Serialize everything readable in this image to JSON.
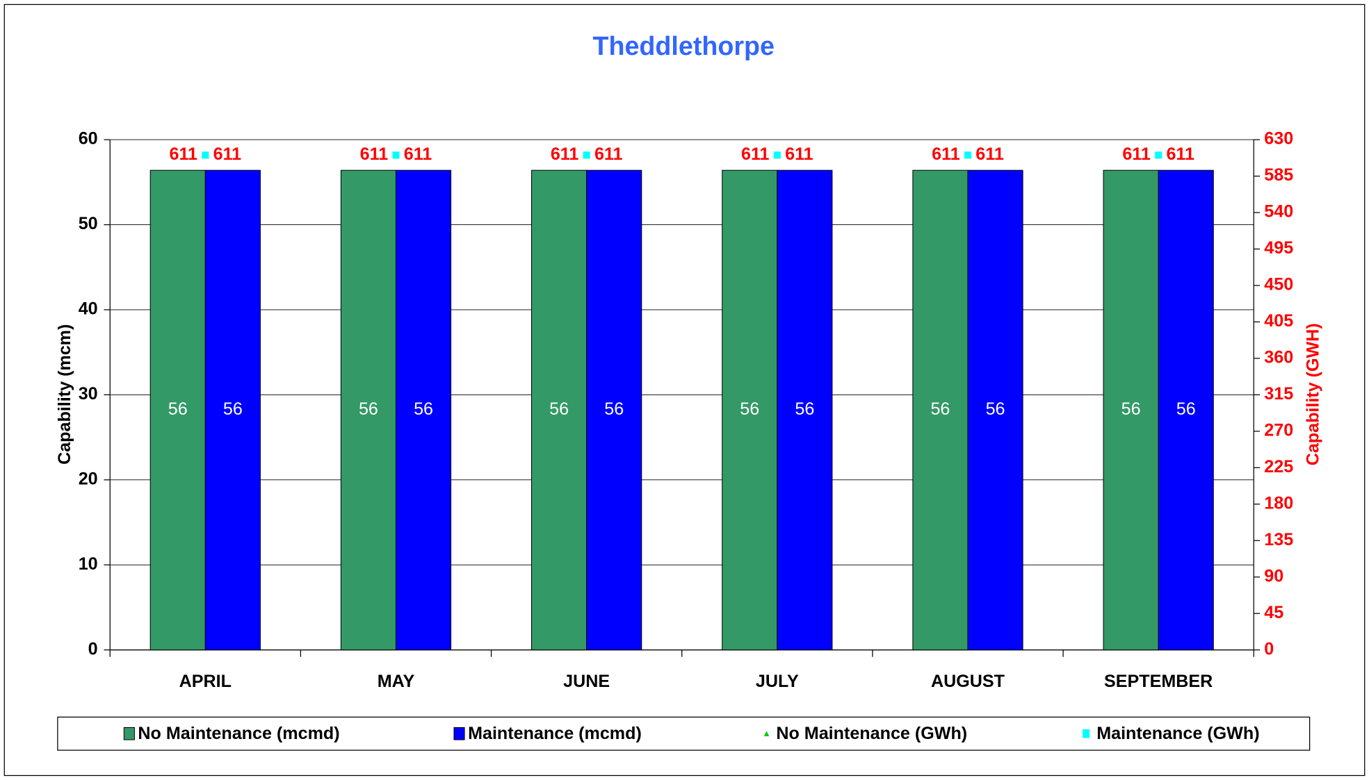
{
  "chart_data": {
    "type": "bar",
    "title": "Theddlethorpe",
    "ylabel": "Capability (mcm)",
    "y2label": "Capability (GWH)",
    "categories": [
      "APRIL",
      "MAY",
      "JUNE",
      "JULY",
      "AUGUST",
      "SEPTEMBER"
    ],
    "series": [
      {
        "name": "No Maintenance (mcmd)",
        "color": "#339966",
        "values": [
          56.4,
          56.4,
          56.4,
          56.4,
          56.4,
          56.4
        ],
        "value_labels": [
          "56",
          "56",
          "56",
          "56",
          "56",
          "56"
        ]
      },
      {
        "name": "Maintenance (mcmd)",
        "color": "#0000ff",
        "values": [
          56.4,
          56.4,
          56.4,
          56.4,
          56.4,
          56.4
        ],
        "value_labels": [
          "56",
          "56",
          "56",
          "56",
          "56",
          "56"
        ]
      },
      {
        "name": "No Maintenance (GWh)",
        "color": "#00cc00",
        "marker": "triangle",
        "axis": "y2",
        "values": [
          611,
          611,
          611,
          611,
          611,
          611
        ]
      },
      {
        "name": "Maintenance (GWh)",
        "color": "#00ffff",
        "marker": "square",
        "axis": "y2",
        "values": [
          611,
          611,
          611,
          611,
          611,
          611
        ]
      }
    ],
    "ylim": [
      0,
      60
    ],
    "yticks": [
      0,
      10,
      20,
      30,
      40,
      50,
      60
    ],
    "y2lim": [
      0,
      630
    ],
    "y2ticks": [
      0,
      45,
      90,
      135,
      180,
      225,
      270,
      315,
      360,
      405,
      450,
      495,
      540,
      585,
      630
    ],
    "grid": true,
    "legend": "bottom"
  }
}
